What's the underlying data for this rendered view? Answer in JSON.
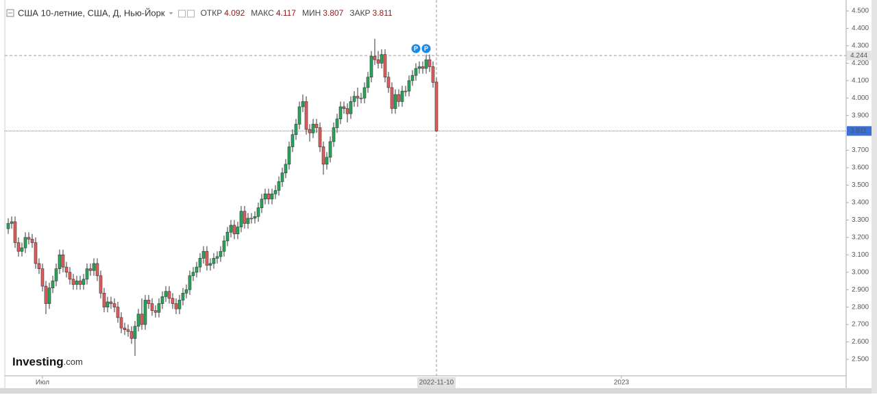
{
  "chart_data": {
    "type": "candlestick",
    "title": "США 10-летние, США, Д, Нью-Йорк",
    "ohlc_labels": {
      "open": "ОТКР",
      "high": "МАКС",
      "low": "МИН",
      "close": "ЗАКР"
    },
    "up_color": "#26a65b",
    "down_color": "#e05c5c",
    "doji_color": "#b0b0b0",
    "series": {
      "open": [
        3.25,
        3.28,
        3.29,
        3.17,
        3.12,
        3.14,
        3.2,
        3.19,
        3.17,
        3.05,
        3.02,
        2.92,
        2.82,
        2.91,
        2.95,
        3.02,
        3.1,
        3.03,
        3.0,
        2.96,
        2.93,
        2.95,
        2.93,
        2.96,
        3.02,
        3.01,
        3.05,
        2.98,
        2.88,
        2.8,
        2.83,
        2.82,
        2.8,
        2.74,
        2.68,
        2.67,
        2.66,
        2.62,
        2.69,
        2.76,
        2.7,
        2.84,
        2.82,
        2.78,
        2.77,
        2.82,
        2.86,
        2.89,
        2.85,
        2.82,
        2.79,
        2.84,
        2.88,
        2.9,
        2.98,
        3.0,
        3.03,
        3.08,
        3.12,
        3.04,
        3.05,
        3.08,
        3.09,
        3.12,
        3.18,
        3.23,
        3.27,
        3.22,
        3.26,
        3.35,
        3.28,
        3.31,
        3.31,
        3.32,
        3.37,
        3.42,
        3.45,
        3.42,
        3.45,
        3.47,
        3.52,
        3.57,
        3.62,
        3.72,
        3.79,
        3.85,
        3.95,
        3.98,
        3.82,
        3.8,
        3.85,
        3.83,
        3.72,
        3.62,
        3.66,
        3.75,
        3.83,
        3.88,
        3.95,
        3.94,
        3.91,
        3.98,
        4.01,
        4.0,
        4.0,
        4.06,
        4.12,
        4.24,
        4.22,
        4.2,
        4.25,
        4.12,
        4.06,
        3.94,
        4.02,
        3.98,
        4.04,
        4.04,
        4.1,
        4.13,
        4.17,
        4.18,
        4.17,
        4.22,
        4.18,
        4.092
      ],
      "high": [
        3.31,
        3.32,
        3.32,
        3.2,
        3.17,
        3.23,
        3.23,
        3.22,
        3.2,
        3.08,
        3.05,
        2.95,
        2.94,
        2.98,
        3.05,
        3.13,
        3.13,
        3.06,
        3.03,
        2.99,
        2.98,
        2.98,
        2.99,
        3.05,
        3.05,
        3.08,
        3.08,
        3.01,
        2.91,
        2.86,
        2.86,
        2.85,
        2.83,
        2.77,
        2.71,
        2.7,
        2.69,
        2.72,
        2.79,
        2.85,
        2.87,
        2.87,
        2.85,
        2.81,
        2.85,
        2.89,
        2.92,
        2.92,
        2.88,
        2.85,
        2.87,
        2.91,
        2.93,
        3.01,
        3.03,
        3.06,
        3.11,
        3.15,
        3.15,
        3.08,
        3.11,
        3.12,
        3.15,
        3.21,
        3.26,
        3.3,
        3.3,
        3.29,
        3.38,
        3.38,
        3.34,
        3.34,
        3.35,
        3.4,
        3.45,
        3.48,
        3.48,
        3.48,
        3.5,
        3.55,
        3.6,
        3.65,
        3.75,
        3.82,
        3.88,
        3.98,
        4.02,
        4.01,
        3.85,
        3.88,
        3.88,
        3.86,
        3.75,
        3.69,
        3.78,
        3.86,
        3.91,
        3.98,
        3.98,
        3.97,
        4.01,
        4.04,
        4.06,
        4.03,
        4.09,
        4.15,
        4.27,
        4.34,
        4.27,
        4.28,
        4.28,
        4.15,
        4.09,
        4.05,
        4.05,
        4.07,
        4.07,
        4.13,
        4.16,
        4.2,
        4.21,
        4.21,
        4.25,
        4.25,
        4.21,
        4.117
      ],
      "low": [
        3.22,
        3.25,
        3.14,
        3.09,
        3.09,
        3.11,
        3.16,
        3.14,
        3.02,
        2.99,
        2.89,
        2.76,
        2.79,
        2.88,
        2.92,
        2.99,
        3.0,
        2.97,
        2.93,
        2.9,
        2.9,
        2.9,
        2.9,
        2.93,
        2.98,
        2.98,
        2.95,
        2.85,
        2.77,
        2.77,
        2.79,
        2.77,
        2.71,
        2.65,
        2.64,
        2.63,
        2.59,
        2.52,
        2.66,
        2.67,
        2.67,
        2.79,
        2.75,
        2.74,
        2.74,
        2.79,
        2.83,
        2.82,
        2.79,
        2.76,
        2.76,
        2.81,
        2.85,
        2.87,
        2.95,
        2.97,
        3.0,
        3.05,
        3.01,
        3.01,
        3.02,
        3.05,
        3.06,
        3.09,
        3.15,
        3.2,
        3.19,
        3.19,
        3.23,
        3.25,
        3.25,
        3.28,
        3.28,
        3.29,
        3.34,
        3.39,
        3.39,
        3.39,
        3.42,
        3.44,
        3.49,
        3.54,
        3.59,
        3.69,
        3.76,
        3.82,
        3.92,
        3.79,
        3.75,
        3.77,
        3.8,
        3.69,
        3.56,
        3.59,
        3.63,
        3.72,
        3.8,
        3.85,
        3.91,
        3.86,
        3.88,
        3.95,
        3.95,
        3.97,
        3.97,
        4.03,
        4.09,
        4.19,
        4.17,
        4.17,
        4.09,
        4.03,
        3.91,
        3.91,
        3.95,
        3.95,
        4.01,
        4.01,
        4.07,
        4.1,
        4.14,
        4.14,
        4.14,
        4.15,
        4.06,
        3.807
      ],
      "close": [
        3.28,
        3.29,
        3.17,
        3.12,
        3.14,
        3.2,
        3.19,
        3.17,
        3.05,
        3.02,
        2.92,
        2.82,
        2.91,
        2.95,
        3.02,
        3.1,
        3.03,
        3.0,
        2.96,
        2.93,
        2.95,
        2.93,
        2.96,
        3.02,
        3.01,
        3.05,
        2.98,
        2.88,
        2.8,
        2.83,
        2.82,
        2.8,
        2.74,
        2.68,
        2.67,
        2.66,
        2.62,
        2.69,
        2.76,
        2.7,
        2.84,
        2.82,
        2.78,
        2.77,
        2.82,
        2.86,
        2.89,
        2.85,
        2.82,
        2.79,
        2.84,
        2.88,
        2.9,
        2.98,
        3.0,
        3.03,
        3.08,
        3.12,
        3.04,
        3.05,
        3.08,
        3.09,
        3.12,
        3.18,
        3.23,
        3.27,
        3.22,
        3.26,
        3.35,
        3.28,
        3.31,
        3.31,
        3.32,
        3.37,
        3.42,
        3.45,
        3.42,
        3.45,
        3.47,
        3.52,
        3.57,
        3.62,
        3.72,
        3.79,
        3.85,
        3.95,
        3.98,
        3.82,
        3.8,
        3.85,
        3.83,
        3.72,
        3.62,
        3.66,
        3.75,
        3.83,
        3.88,
        3.95,
        3.94,
        3.91,
        3.98,
        4.01,
        4.0,
        4.0,
        4.06,
        4.12,
        4.24,
        4.22,
        4.2,
        4.25,
        4.12,
        4.06,
        3.94,
        4.02,
        3.98,
        4.04,
        4.04,
        4.1,
        4.13,
        4.17,
        4.18,
        4.17,
        4.22,
        4.18,
        4.09,
        3.811
      ]
    },
    "xlim": [
      -1,
      244
    ],
    "xticks": [
      {
        "value": 10,
        "label": "Июл"
      },
      {
        "value": 179,
        "label": "2023"
      }
    ],
    "crosshair_x": {
      "value": 125,
      "label": "2022-11-10"
    },
    "crosshair_y": 4.244,
    "events": [
      {
        "x": 119,
        "label": "P"
      },
      {
        "x": 122,
        "label": "P"
      }
    ],
    "ylim": [
      2.5,
      4.5
    ],
    "yticks": [
      {
        "value": 4.5,
        "label": "4.500"
      },
      {
        "value": 4.4,
        "label": "4.400"
      },
      {
        "value": 4.3,
        "label": "4.300"
      },
      {
        "value": 4.2,
        "label": "4.200"
      },
      {
        "value": 4.1,
        "label": "4.100"
      },
      {
        "value": 4.0,
        "label": "4.000"
      },
      {
        "value": 3.9,
        "label": "3.900"
      },
      {
        "value": 3.8,
        "label": "3.800"
      },
      {
        "value": 3.7,
        "label": "3.700"
      },
      {
        "value": 3.6,
        "label": "3.600"
      },
      {
        "value": 3.5,
        "label": "3.500"
      },
      {
        "value": 3.4,
        "label": "3.400"
      },
      {
        "value": 3.3,
        "label": "3.300"
      },
      {
        "value": 3.2,
        "label": "3.200"
      },
      {
        "value": 3.1,
        "label": "3.100"
      },
      {
        "value": 3.0,
        "label": "3.000"
      },
      {
        "value": 2.9,
        "label": "2.900"
      },
      {
        "value": 2.8,
        "label": "2.800"
      },
      {
        "value": 2.7,
        "label": "2.700"
      },
      {
        "value": 2.6,
        "label": "2.600"
      },
      {
        "value": 2.5,
        "label": "2.500"
      }
    ],
    "grid": false,
    "watermark": [
      "Investing",
      ".com"
    ]
  }
}
